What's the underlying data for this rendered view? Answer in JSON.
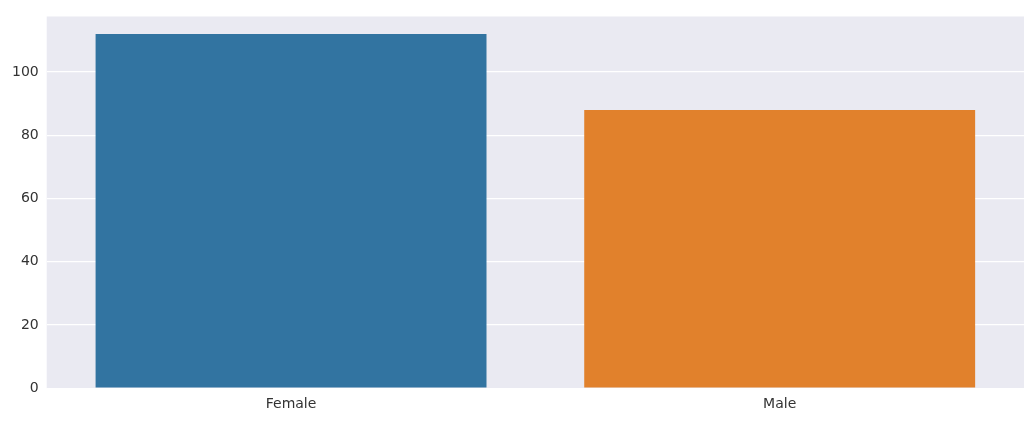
{
  "chart_data": {
    "type": "bar",
    "categories": [
      "Female",
      "Male"
    ],
    "values": [
      112,
      88
    ],
    "colors": [
      "#3274a1",
      "#e1812c"
    ],
    "ylim": [
      0,
      117.6
    ],
    "yticks": [
      0,
      20,
      40,
      60,
      80,
      100
    ],
    "grid": "y"
  }
}
